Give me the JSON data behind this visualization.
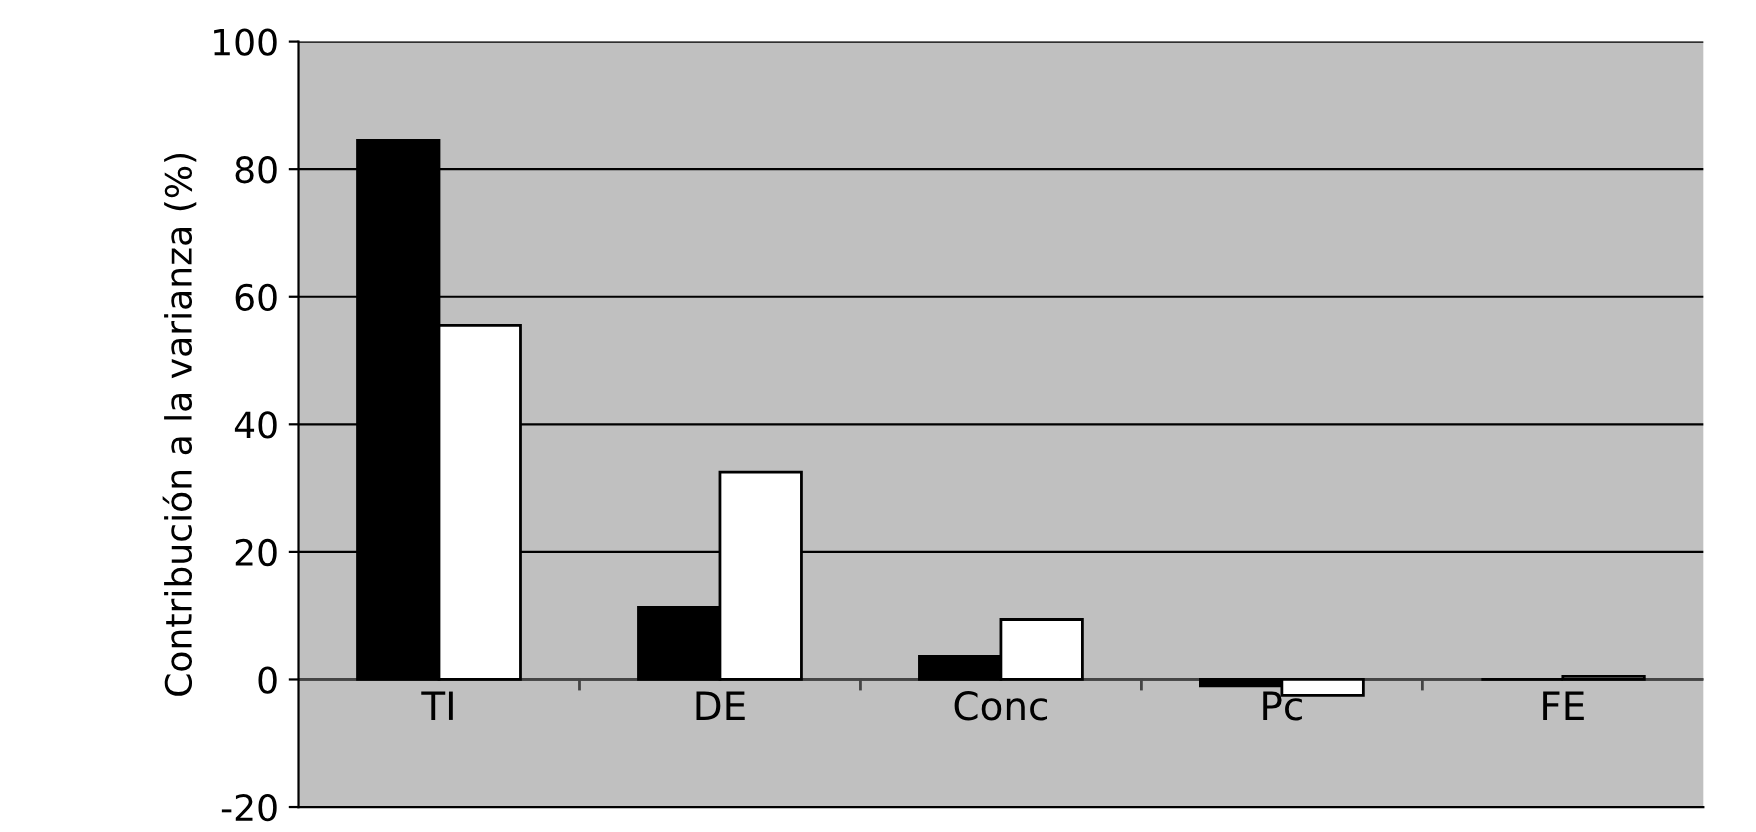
{
  "chart_data": {
    "type": "bar",
    "ylabel": "Contribución a la varianza (%)",
    "categories": [
      "TI",
      "DE",
      "Conc",
      "Pc",
      "FE"
    ],
    "series": [
      {
        "color": "#000000",
        "values": [
          84.5,
          11.3,
          3.6,
          -1,
          0
        ]
      },
      {
        "color": "#ffffff",
        "values": [
          55.5,
          32.5,
          9.4,
          -2.5,
          0.5
        ]
      }
    ],
    "ylim": [
      -20,
      100
    ],
    "yticks": [
      -20,
      0,
      20,
      40,
      60,
      80,
      100
    ],
    "grid": "y",
    "legend": false
  }
}
